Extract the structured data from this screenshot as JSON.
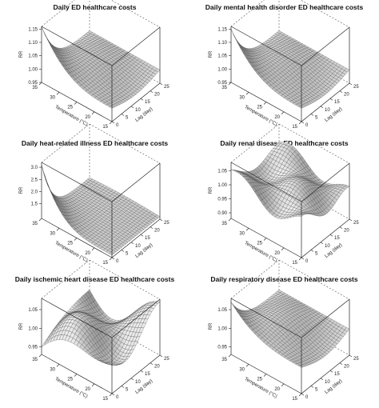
{
  "chart_data": [
    {
      "type": "surface",
      "title": "Daily ED healthcare costs",
      "xlabel": "Temperature (°C)",
      "ylabel": "Lag (day)",
      "zlabel": "RR",
      "x_ticks": [
        "35",
        "30",
        "25",
        "20",
        "15"
      ],
      "y_ticks": [
        "0",
        "5",
        "10",
        "15",
        "20",
        "25"
      ],
      "z_ticks": [
        "0.95",
        "1.00",
        "1.05",
        "1.10",
        "1.15"
      ],
      "zlim": [
        0.95,
        1.16
      ],
      "shape": "peak_high_temp_lag0",
      "peak_rr": 1.16,
      "baseline_rr": 1.0
    },
    {
      "type": "surface",
      "title": "Daily mental health disorder ED healthcare costs",
      "xlabel": "Temperature (°C)",
      "ylabel": "Lag (day)",
      "zlabel": "RR",
      "x_ticks": [
        "35",
        "30",
        "25",
        "20",
        "15"
      ],
      "y_ticks": [
        "0",
        "5",
        "10",
        "15",
        "20",
        "25"
      ],
      "z_ticks": [
        "0.95",
        "1.00",
        "1.05",
        "1.10",
        "1.15"
      ],
      "zlim": [
        0.95,
        1.16
      ],
      "shape": "peak_high_temp_lag0",
      "peak_rr": 1.15,
      "baseline_rr": 1.0
    },
    {
      "type": "surface",
      "title": "Daily heat-related illness ED healthcare costs",
      "xlabel": "Temperature (°C)",
      "ylabel": "Lag (day)",
      "zlabel": "RR",
      "x_ticks": [
        "35",
        "30",
        "25",
        "20",
        "15"
      ],
      "y_ticks": [
        "0",
        "5",
        "10",
        "15",
        "20",
        "25"
      ],
      "z_ticks": [
        "1.5",
        "2.0",
        "2.5",
        "3.0"
      ],
      "zlim": [
        0.9,
        3.2
      ],
      "shape": "sharp_peak_high_temp_lag0",
      "peak_rr": 3.1,
      "baseline_rr": 1.0
    },
    {
      "type": "surface",
      "title": "Daily renal disease ED healthcare costs",
      "xlabel": "Temperature (°C)",
      "ylabel": "Lag (day)",
      "zlabel": "RR",
      "x_ticks": [
        "35",
        "30",
        "25",
        "20",
        "15"
      ],
      "y_ticks": [
        "0",
        "5",
        "10",
        "15",
        "20",
        "25"
      ],
      "z_ticks": [
        "0.90",
        "0.95",
        "1.00",
        "1.05"
      ],
      "zlim": [
        0.88,
        1.08
      ],
      "shape": "wavy",
      "peak_rr": 1.07,
      "baseline_rr": 1.0
    },
    {
      "type": "surface",
      "title": "Daily ischemic heart disease ED healthcare costs",
      "xlabel": "Temperature (°C)",
      "ylabel": "Lag (day)",
      "zlabel": "RR",
      "x_ticks": [
        "35",
        "30",
        "25",
        "20",
        "15"
      ],
      "y_ticks": [
        "0",
        "5",
        "10",
        "15",
        "20",
        "25"
      ],
      "z_ticks": [
        "0.95",
        "1.00",
        "1.05"
      ],
      "zlim": [
        0.93,
        1.08
      ],
      "shape": "saddle",
      "peak_rr": 1.07,
      "baseline_rr": 1.0
    },
    {
      "type": "surface",
      "title": "Daily respiratory disease ED healthcare costs",
      "xlabel": "Temperature (°C)",
      "ylabel": "Lag (day)",
      "zlabel": "RR",
      "x_ticks": [
        "35",
        "30",
        "25",
        "20",
        "15"
      ],
      "y_ticks": [
        "0",
        "5",
        "10",
        "15",
        "20",
        "25"
      ],
      "z_ticks": [
        "0.95",
        "1.00",
        "1.05"
      ],
      "zlim": [
        0.93,
        1.08
      ],
      "shape": "peak_high_temp_lag0",
      "peak_rr": 1.07,
      "baseline_rr": 1.0
    }
  ]
}
